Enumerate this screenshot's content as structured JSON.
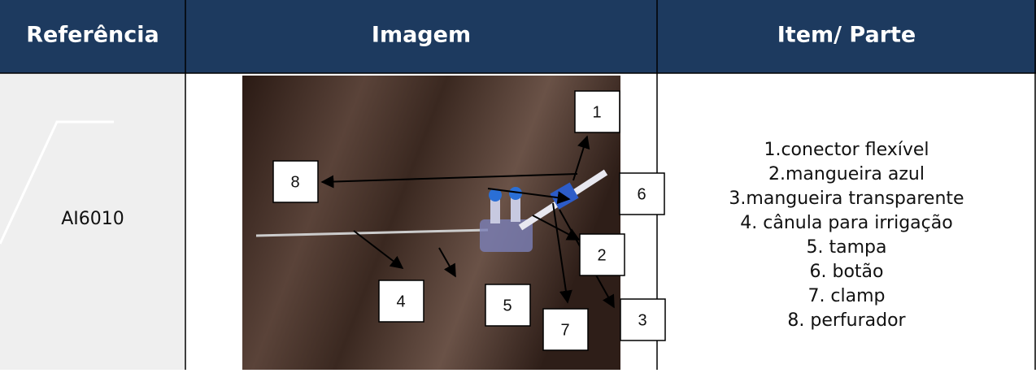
{
  "table": {
    "header": [
      "Referência",
      "Imagem",
      "Item/ Parte"
    ],
    "rows": [
      {
        "reference": "AI6010",
        "callouts": [
          "1",
          "2",
          "3",
          "4",
          "5",
          "6",
          "7",
          "8"
        ],
        "items": [
          "1.conector flexível",
          "2.mangueira azul",
          "3.mangueira transparente",
          "4. cânula para irrigação",
          "5. tampa",
          "6. botão",
          "7. clamp",
          "8. perfurador"
        ]
      }
    ]
  }
}
